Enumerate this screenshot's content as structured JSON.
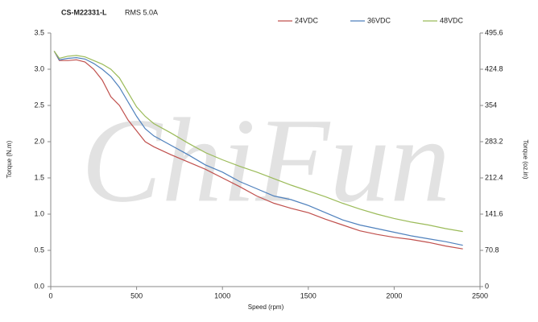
{
  "chart_data": {
    "type": "line",
    "title": "CS-M22331-L",
    "subtitle": "RMS 5.0A",
    "watermark": "ChiFun",
    "x_label": "Speed (rpm)",
    "y_label": "Torque (N.m)",
    "y2_label": "Torque (oz.in)",
    "x": [
      20,
      50,
      100,
      150,
      200,
      250,
      300,
      350,
      400,
      450,
      500,
      550,
      600,
      700,
      800,
      900,
      1000,
      1100,
      1200,
      1300,
      1400,
      1500,
      1600,
      1700,
      1800,
      1900,
      2000,
      2100,
      2200,
      2300,
      2400
    ],
    "series": [
      {
        "name": "24VDC",
        "color": "#c0504d",
        "values": [
          3.25,
          3.12,
          3.12,
          3.13,
          3.1,
          3.0,
          2.85,
          2.62,
          2.5,
          2.3,
          2.15,
          2.0,
          1.93,
          1.82,
          1.72,
          1.62,
          1.5,
          1.38,
          1.25,
          1.15,
          1.08,
          1.02,
          0.93,
          0.85,
          0.77,
          0.72,
          0.68,
          0.65,
          0.61,
          0.56,
          0.52
        ]
      },
      {
        "name": "36VDC",
        "color": "#4f81bd",
        "values": [
          3.25,
          3.13,
          3.15,
          3.16,
          3.14,
          3.08,
          3.0,
          2.9,
          2.75,
          2.55,
          2.35,
          2.18,
          2.08,
          1.95,
          1.82,
          1.68,
          1.58,
          1.45,
          1.35,
          1.25,
          1.2,
          1.12,
          1.02,
          0.92,
          0.85,
          0.8,
          0.75,
          0.7,
          0.66,
          0.62,
          0.57
        ]
      },
      {
        "name": "48VDC",
        "color": "#9bbb59",
        "values": [
          3.25,
          3.15,
          3.18,
          3.19,
          3.17,
          3.12,
          3.07,
          3.0,
          2.88,
          2.68,
          2.48,
          2.35,
          2.25,
          2.12,
          1.98,
          1.85,
          1.75,
          1.66,
          1.58,
          1.49,
          1.4,
          1.32,
          1.24,
          1.15,
          1.07,
          1.0,
          0.94,
          0.89,
          0.85,
          0.8,
          0.76
        ]
      }
    ],
    "xlim": [
      0,
      2500
    ],
    "xticks": [
      0,
      500,
      1000,
      1500,
      2000,
      2500
    ],
    "ylim": [
      0,
      3.5
    ],
    "yticks": [
      {
        "value": 0,
        "label": "0.0"
      },
      0.5,
      {
        "value": 1,
        "label": "1.0"
      },
      1.5,
      {
        "value": 2,
        "label": "2.0"
      },
      2.5,
      {
        "value": 3,
        "label": "3.0"
      },
      3.5
    ],
    "y2lim": [
      0,
      495.6
    ],
    "y2ticks": [
      0,
      70.8,
      141.6,
      212.4,
      283.2,
      354,
      424.8,
      495.6
    ],
    "grid": false,
    "legend": "top"
  }
}
